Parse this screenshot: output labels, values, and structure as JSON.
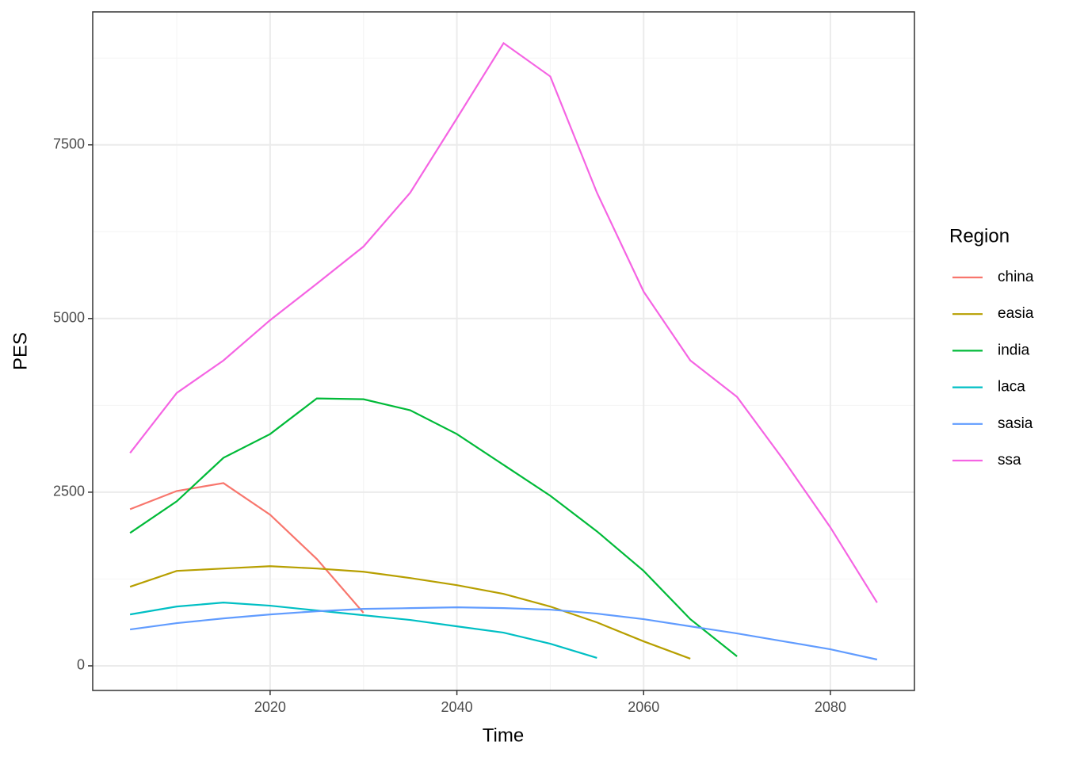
{
  "chart_data": {
    "type": "line",
    "xlabel": "Time",
    "ylabel": "PES",
    "legend_title": "Region",
    "x": [
      2005,
      2010,
      2015,
      2020,
      2025,
      2030,
      2035,
      2040,
      2045,
      2050,
      2055,
      2060,
      2065,
      2070,
      2075,
      2080,
      2085
    ],
    "series": [
      {
        "name": "china",
        "color": "#F8766D",
        "values": [
          2255,
          2517,
          2631,
          2175,
          1538,
          763,
          null,
          null,
          null,
          null,
          null,
          null,
          null,
          null,
          null,
          null,
          null
        ]
      },
      {
        "name": "easia",
        "color": "#B79F00",
        "values": [
          1139,
          1367,
          1401,
          1435,
          1401,
          1355,
          1264,
          1162,
          1036,
          854,
          626,
          353,
          103,
          null,
          null,
          null,
          null
        ]
      },
      {
        "name": "india",
        "color": "#00BA38",
        "values": [
          1913,
          2369,
          2995,
          3337,
          3850,
          3838,
          3679,
          3337,
          2893,
          2449,
          1936,
          1367,
          672,
          137,
          null,
          null,
          null
        ]
      },
      {
        "name": "laca",
        "color": "#00BFC4",
        "values": [
          740,
          854,
          911,
          866,
          797,
          729,
          661,
          569,
          478,
          319,
          114,
          null,
          null,
          null,
          null,
          null,
          null
        ]
      },
      {
        "name": "sasia",
        "color": "#619CFF",
        "values": [
          524,
          615,
          683,
          740,
          786,
          820,
          831,
          843,
          831,
          809,
          752,
          672,
          569,
          467,
          353,
          239,
          91
        ]
      },
      {
        "name": "ssa",
        "color": "#F564E3",
        "values": [
          3064,
          3929,
          4396,
          4977,
          5501,
          6036,
          6811,
          7882,
          8964,
          8485,
          6811,
          5387,
          4396,
          3872,
          2961,
          1993,
          911
        ]
      }
    ],
    "xlim": [
      2001,
      2089
    ],
    "xticks": [
      2020,
      2040,
      2060,
      2080
    ],
    "ylim": [
      -354,
      9414
    ],
    "yticks": [
      0,
      2500,
      5000,
      7500
    ],
    "grid": true,
    "legend": "right"
  }
}
